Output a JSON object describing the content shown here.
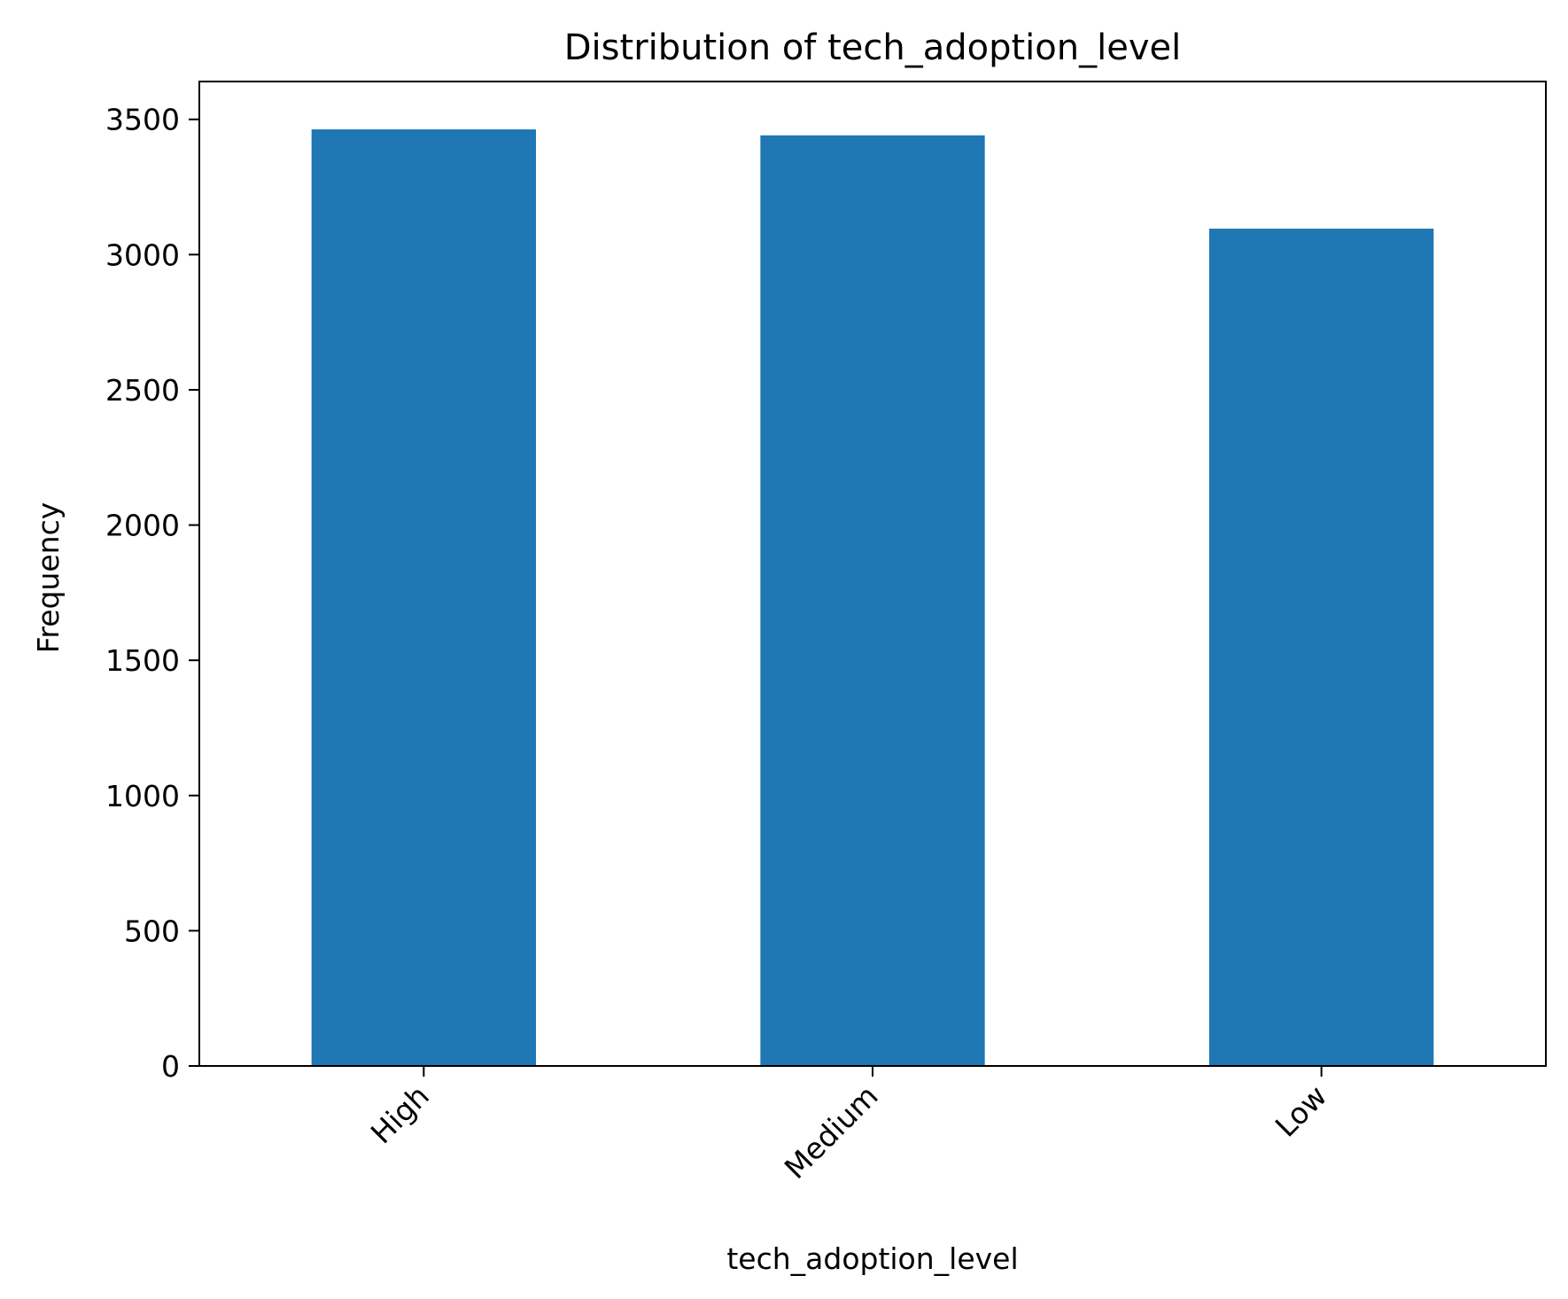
{
  "chart_data": {
    "type": "bar",
    "title": "Distribution of tech_adoption_level",
    "xlabel": "tech_adoption_level",
    "ylabel": "Frequency",
    "categories": [
      "High",
      "Medium",
      "Low"
    ],
    "values": [
      3463,
      3441,
      3096
    ],
    "ylim": [
      0,
      3640
    ],
    "yticks": [
      0,
      500,
      1000,
      1500,
      2000,
      2500,
      3000,
      3500
    ],
    "grid": false,
    "bar_color": "#1f77b4"
  }
}
